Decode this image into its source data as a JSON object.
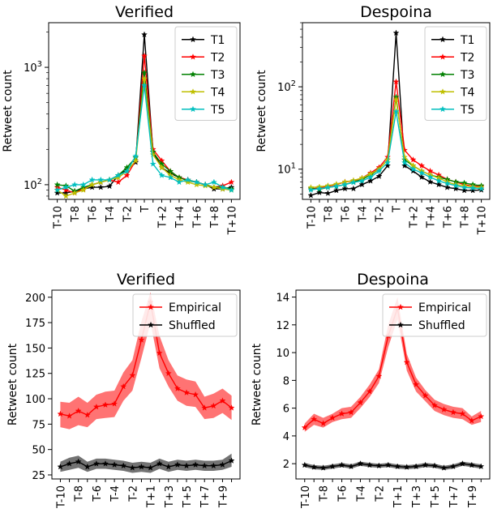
{
  "chart_data": [
    {
      "type": "line",
      "title": "Verified",
      "xlabel": "",
      "ylabel": "Retweet count",
      "yscale": "log",
      "ylim": [
        75,
        2400
      ],
      "grid": false,
      "legend_position": "top-right",
      "x": [
        "T-10",
        "T-9",
        "T-8",
        "T-7",
        "T-6",
        "T-5",
        "T-4",
        "T-3",
        "T-2",
        "T-1",
        "T",
        "T+1",
        "T+2",
        "T+3",
        "T+4",
        "T+5",
        "T+6",
        "T+7",
        "T+8",
        "T+9",
        "T+10"
      ],
      "x_tick_labels": [
        "T-10",
        "T-8",
        "T-6",
        "T-4",
        "T-2",
        "T",
        "T+2",
        "T+4",
        "T+6",
        "T+8",
        "T+10"
      ],
      "y_tick_labels": [
        {
          "value": 100,
          "base": "10",
          "exp": "2"
        },
        {
          "value": 1000,
          "base": "10",
          "exp": "3"
        }
      ],
      "series": [
        {
          "name": "T1",
          "color": "#000000",
          "values": [
            85,
            85,
            88,
            92,
            95,
            95,
            97,
            120,
            135,
            155,
            1900,
            190,
            140,
            125,
            115,
            110,
            105,
            100,
            92,
            92,
            95
          ]
        },
        {
          "name": "T2",
          "color": "#ff0000",
          "values": [
            95,
            90,
            85,
            92,
            100,
            105,
            110,
            105,
            120,
            160,
            1250,
            200,
            160,
            130,
            115,
            110,
            105,
            100,
            95,
            98,
            105
          ]
        },
        {
          "name": "T3",
          "color": "#008000",
          "values": [
            100,
            98,
            88,
            95,
            100,
            105,
            110,
            120,
            140,
            170,
            900,
            190,
            150,
            130,
            115,
            108,
            105,
            100,
            95,
            95,
            92
          ]
        },
        {
          "name": "T4",
          "color": "#bfbf00",
          "values": [
            90,
            80,
            85,
            90,
            100,
            105,
            110,
            115,
            130,
            160,
            800,
            180,
            140,
            120,
            110,
            105,
            100,
            98,
            95,
            92,
            90
          ]
        },
        {
          "name": "T5",
          "color": "#00bfbf",
          "values": [
            90,
            95,
            100,
            100,
            110,
            110,
            110,
            120,
            130,
            175,
            700,
            150,
            120,
            115,
            105,
            110,
            105,
            100,
            105,
            95,
            90
          ]
        }
      ]
    },
    {
      "type": "line",
      "title": "Despoina",
      "xlabel": "",
      "ylabel": "Retweet count",
      "yscale": "log",
      "ylim": [
        4.3,
        600
      ],
      "grid": false,
      "legend_position": "top-right",
      "x": [
        "T-10",
        "T-9",
        "T-8",
        "T-7",
        "T-6",
        "T-5",
        "T-4",
        "T-3",
        "T-2",
        "T-1",
        "T",
        "T+1",
        "T+2",
        "T+3",
        "T+4",
        "T+5",
        "T+6",
        "T+7",
        "T+8",
        "T+9",
        "T+10"
      ],
      "x_tick_labels": [
        "T-10",
        "T-8",
        "T-6",
        "T-4",
        "T-2",
        "T",
        "T+2",
        "T+4",
        "T+6",
        "T+8",
        "T+10"
      ],
      "y_tick_labels": [
        {
          "value": 10,
          "base": "10",
          "exp": "1"
        },
        {
          "value": 100,
          "base": "10",
          "exp": "2"
        }
      ],
      "series": [
        {
          "name": "T1",
          "color": "#000000",
          "values": [
            4.8,
            5.2,
            5.1,
            5.5,
            5.8,
            5.8,
            6.5,
            7.2,
            8.2,
            11,
            450,
            11,
            9.5,
            8,
            7,
            6.5,
            6,
            5.8,
            5.5,
            5.5,
            5.6
          ]
        },
        {
          "name": "T2",
          "color": "#ff0000",
          "values": [
            5.8,
            5.9,
            6.2,
            6.5,
            7,
            7.2,
            7.8,
            9,
            10.5,
            14,
            115,
            17,
            13,
            11,
            9.5,
            8.5,
            7.5,
            7,
            6.5,
            6.2,
            6.2
          ]
        },
        {
          "name": "T3",
          "color": "#008000",
          "values": [
            5.8,
            5.7,
            6,
            6.2,
            6.5,
            7,
            7.5,
            8.5,
            10,
            13,
            75,
            13,
            11,
            9.5,
            8.5,
            8,
            7.5,
            7,
            6.8,
            6.5,
            6.3
          ]
        },
        {
          "name": "T4",
          "color": "#bfbf00",
          "values": [
            6,
            6.1,
            6.3,
            6.6,
            7,
            7.3,
            7.8,
            8.8,
            10,
            13,
            70,
            14,
            11,
            9.5,
            8.5,
            7.8,
            7,
            6.5,
            6.3,
            6.1,
            6
          ]
        },
        {
          "name": "T5",
          "color": "#00bfbf",
          "values": [
            5.6,
            5.8,
            6,
            6.2,
            6.5,
            6.9,
            7.2,
            8,
            9.5,
            12,
            50,
            12,
            10,
            9,
            8,
            7.2,
            6.7,
            6.3,
            6,
            5.9,
            5.8
          ]
        }
      ]
    },
    {
      "type": "line",
      "title": "Verified",
      "xlabel": "",
      "ylabel": "Retweet count",
      "ylim": [
        21,
        207
      ],
      "grid": false,
      "legend_position": "top-right",
      "x": [
        "T-10",
        "T-9",
        "T-8",
        "T-7",
        "T-6",
        "T-5",
        "T-4",
        "T-3",
        "T-2",
        "T-1",
        "T+1",
        "T+2",
        "T+3",
        "T+4",
        "T+5",
        "T+6",
        "T+7",
        "T+8",
        "T+9",
        "T+10"
      ],
      "x_tick_labels": [
        "T-10",
        "T-8",
        "T-6",
        "T-4",
        "T-2",
        "T+1",
        "T+3",
        "T+5",
        "T+7",
        "T+9"
      ],
      "y_ticks": [
        25,
        50,
        75,
        100,
        125,
        150,
        175,
        200
      ],
      "series": [
        {
          "name": "Empirical",
          "color": "#ff0000",
          "values": [
            85,
            83,
            88,
            84,
            92,
            94,
            95,
            112,
            123,
            158,
            195,
            145,
            125,
            110,
            106,
            104,
            91,
            93,
            98,
            91
          ],
          "band_low": [
            72,
            70,
            74,
            72,
            80,
            81,
            82,
            98,
            108,
            140,
            175,
            130,
            112,
            98,
            93,
            92,
            80,
            81,
            86,
            79
          ],
          "band_high": [
            97,
            96,
            102,
            96,
            104,
            107,
            108,
            126,
            138,
            176,
            205,
            162,
            138,
            123,
            119,
            117,
            102,
            105,
            110,
            103
          ]
        },
        {
          "name": "Shuffled",
          "color": "#000000",
          "values": [
            33,
            36,
            38,
            33,
            36,
            36,
            35,
            34,
            32,
            33,
            32,
            36,
            33,
            35,
            34,
            35,
            34,
            34,
            35,
            39
          ],
          "band_low": [
            28,
            30,
            32,
            28,
            31,
            31,
            30,
            29,
            27,
            28,
            27,
            31,
            28,
            30,
            29,
            30,
            29,
            29,
            30,
            33
          ],
          "band_high": [
            38,
            42,
            44,
            38,
            41,
            41,
            40,
            39,
            37,
            38,
            37,
            41,
            38,
            40,
            39,
            40,
            39,
            39,
            40,
            46
          ]
        }
      ]
    },
    {
      "type": "line",
      "title": "Despoina",
      "xlabel": "",
      "ylabel": "Retweet count",
      "ylim": [
        0.9,
        14.5
      ],
      "grid": false,
      "legend_position": "top-right",
      "x": [
        "T-10",
        "T-9",
        "T-8",
        "T-7",
        "T-6",
        "T-5",
        "T-4",
        "T-3",
        "T-2",
        "T-1",
        "T+1",
        "T+2",
        "T+3",
        "T+4",
        "T+5",
        "T+6",
        "T+7",
        "T+8",
        "T+9",
        "T+10"
      ],
      "x_tick_labels": [
        "T-10",
        "T-8",
        "T-6",
        "T-4",
        "T-2",
        "T+1",
        "T+3",
        "T+5",
        "T+7",
        "T+9"
      ],
      "y_ticks": [
        2,
        4,
        6,
        8,
        10,
        12,
        14
      ],
      "series": [
        {
          "name": "Empirical",
          "color": "#ff0000",
          "values": [
            4.6,
            5.2,
            4.9,
            5.3,
            5.6,
            5.7,
            6.4,
            7.2,
            8.3,
            11.2,
            13.2,
            9.3,
            7.7,
            6.9,
            6.2,
            5.9,
            5.7,
            5.6,
            5.1,
            5.4
          ],
          "band_low": [
            4.3,
            4.8,
            4.6,
            5.0,
            5.2,
            5.3,
            6.0,
            6.8,
            7.8,
            10.4,
            12.4,
            8.7,
            7.2,
            6.5,
            5.8,
            5.5,
            5.3,
            5.2,
            4.8,
            5.0
          ],
          "band_high": [
            4.9,
            5.6,
            5.3,
            5.6,
            6.0,
            6.1,
            6.8,
            7.7,
            8.8,
            12.0,
            14.0,
            9.9,
            8.2,
            7.3,
            6.6,
            6.3,
            6.1,
            6.0,
            5.4,
            5.8
          ]
        },
        {
          "name": "Shuffled",
          "color": "#000000",
          "values": [
            1.9,
            1.75,
            1.7,
            1.8,
            1.9,
            1.8,
            2.0,
            1.9,
            1.85,
            1.9,
            1.8,
            1.75,
            1.8,
            1.9,
            1.85,
            1.7,
            1.8,
            2.0,
            1.9,
            1.8
          ],
          "band_low": [
            1.75,
            1.6,
            1.55,
            1.65,
            1.75,
            1.65,
            1.85,
            1.75,
            1.7,
            1.75,
            1.65,
            1.6,
            1.65,
            1.75,
            1.7,
            1.55,
            1.65,
            1.85,
            1.75,
            1.65
          ],
          "band_high": [
            2.05,
            1.9,
            1.85,
            1.95,
            2.05,
            1.95,
            2.15,
            2.05,
            2.0,
            2.05,
            1.95,
            1.9,
            1.95,
            2.05,
            2.0,
            1.85,
            1.95,
            2.15,
            2.05,
            1.95
          ]
        }
      ]
    }
  ]
}
